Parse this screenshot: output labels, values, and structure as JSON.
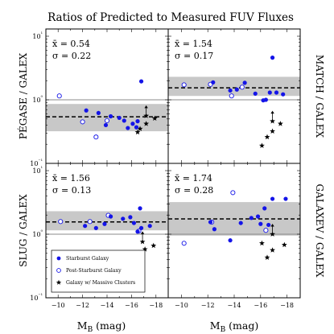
{
  "chart_data": {
    "type": "scatter",
    "title": "Ratios of Predicted to Measured FUV Fluxes",
    "xlabel": "M_B (mag)",
    "xlim": [
      -9,
      -19
    ],
    "x_ticks": [
      -10,
      -12,
      -14,
      -16,
      -18
    ],
    "x_tick_labels": [
      "−10",
      "−12",
      "−14",
      "−16",
      "−18"
    ],
    "ylim": [
      0.1,
      13
    ],
    "y_scale": "log",
    "y_ticks": [
      0.1,
      1,
      10
    ],
    "y_tick_labels": [
      "10⁻¹",
      "10⁰",
      "10¹"
    ],
    "reference_line": 1,
    "legend": {
      "placement": "lower-left of bottom-left panel",
      "entries": [
        {
          "label": "Starburst Galaxy",
          "marker": "filled-circle"
        },
        {
          "label": "Post-Starburst Galaxy",
          "marker": "open-circle"
        },
        {
          "label": "Galaxy w/ Massive Clusters",
          "marker": "star"
        }
      ]
    },
    "panels": [
      {
        "ylabel": "PÉGASE / GALEX",
        "ylabel_side": "left",
        "mean_label": "x̄ = 0.54",
        "sigma_label": "σ = 0.22",
        "mean": 0.54,
        "band": [
          0.32,
          0.86
        ],
        "starburst": [
          [
            -12.3,
            0.68
          ],
          [
            -13.3,
            0.62
          ],
          [
            -13.9,
            0.4
          ],
          [
            -14.3,
            0.55
          ],
          [
            -15.0,
            0.52
          ],
          [
            -15.4,
            0.47
          ],
          [
            -15.7,
            0.36
          ],
          [
            -16.1,
            0.42
          ],
          [
            -16.4,
            0.37
          ],
          [
            -16.5,
            0.46
          ],
          [
            -16.8,
            1.95
          ]
        ],
        "poststarburst": [
          [
            -10.1,
            1.15
          ],
          [
            -12.0,
            0.45
          ],
          [
            -13.1,
            0.26
          ],
          [
            -14.0,
            0.47
          ]
        ],
        "clusters": [
          [
            -16.5,
            0.31
          ],
          [
            -16.7,
            0.35
          ],
          [
            -17.2,
            0.42
          ],
          [
            -17.2,
            0.56
          ],
          [
            -17.9,
            0.51
          ]
        ],
        "lower_limit_arrows": [
          [
            -17.2,
            0.56
          ]
        ]
      },
      {
        "ylabel": "MATCH / GALEX",
        "ylabel_side": "right",
        "mean_label": "x̄ = 1.54",
        "sigma_label": "σ = 0.17",
        "mean": 1.54,
        "band": [
          1.15,
          2.3
        ],
        "starburst": [
          [
            -12.4,
            1.88
          ],
          [
            -13.7,
            1.4
          ],
          [
            -14.2,
            1.45
          ],
          [
            -14.8,
            1.85
          ],
          [
            -15.6,
            1.25
          ],
          [
            -16.2,
            0.98
          ],
          [
            -16.4,
            1.0
          ],
          [
            -16.7,
            1.3
          ],
          [
            -16.9,
            4.6
          ],
          [
            -17.2,
            1.3
          ],
          [
            -17.7,
            1.22
          ]
        ],
        "poststarburst": [
          [
            -10.2,
            1.72
          ],
          [
            -12.2,
            1.75
          ],
          [
            -13.8,
            1.15
          ],
          [
            -14.6,
            1.58
          ]
        ],
        "clusters": [
          [
            -16.1,
            0.19
          ],
          [
            -16.5,
            0.26
          ],
          [
            -16.9,
            0.46
          ],
          [
            -16.9,
            0.32
          ],
          [
            -17.5,
            0.42
          ]
        ],
        "lower_limit_arrows": [
          [
            -16.9,
            0.46
          ]
        ]
      },
      {
        "ylabel": "SLUG / GALEX",
        "ylabel_side": "left",
        "mean_label": "x̄ = 1.56",
        "sigma_label": "σ = 0.13",
        "mean": 1.56,
        "band": [
          1.15,
          2.3
        ],
        "starburst": [
          [
            -12.2,
            1.35
          ],
          [
            -13.1,
            1.25
          ],
          [
            -13.8,
            1.45
          ],
          [
            -14.3,
            1.9
          ],
          [
            -15.3,
            1.75
          ],
          [
            -15.9,
            1.85
          ],
          [
            -16.2,
            1.5
          ],
          [
            -16.5,
            1.1
          ],
          [
            -16.7,
            2.55
          ],
          [
            -16.8,
            1.25
          ],
          [
            -17.5,
            1.35
          ]
        ],
        "poststarburst": [
          [
            -10.2,
            1.58
          ],
          [
            -12.6,
            1.58
          ],
          [
            -14.1,
            1.98
          ],
          [
            -16.6,
            1.12
          ]
        ],
        "clusters": [
          [
            -16.3,
            0.42
          ],
          [
            -16.6,
            0.51
          ],
          [
            -16.9,
            0.76
          ],
          [
            -17.1,
            0.58
          ],
          [
            -17.8,
            0.66
          ]
        ],
        "lower_limit_arrows": [
          [
            -16.9,
            0.76
          ]
        ]
      },
      {
        "ylabel": "GALAXEV / GALEX",
        "ylabel_side": "right",
        "mean_label": "x̄ = 1.74",
        "sigma_label": "σ = 0.28",
        "mean": 1.74,
        "band": [
          0.95,
          3.2
        ],
        "starburst": [
          [
            -12.2,
            1.55
          ],
          [
            -12.5,
            1.2
          ],
          [
            -13.7,
            0.8
          ],
          [
            -14.5,
            1.5
          ],
          [
            -15.3,
            1.8
          ],
          [
            -15.8,
            1.9
          ],
          [
            -16.0,
            1.45
          ],
          [
            -16.3,
            2.55
          ],
          [
            -16.6,
            1.4
          ],
          [
            -16.9,
            3.6
          ],
          [
            -17.9,
            3.6
          ]
        ],
        "poststarburst": [
          [
            -10.2,
            0.72
          ],
          [
            -12.3,
            1.55
          ],
          [
            -13.9,
            4.5
          ],
          [
            -16.4,
            1.15
          ]
        ],
        "clusters": [
          [
            -16.1,
            0.72
          ],
          [
            -16.5,
            0.43
          ],
          [
            -16.9,
            1.0
          ],
          [
            -16.9,
            0.56
          ],
          [
            -17.8,
            0.68
          ]
        ],
        "lower_limit_arrows": [
          [
            -16.9,
            1.0
          ]
        ]
      }
    ]
  },
  "colors": {
    "marker": "#1414e8",
    "band": "#c8c8c8",
    "axis": "#000000",
    "ref_line": "#8a8a8a"
  },
  "right_label_prefix_small": "MATCH"
}
